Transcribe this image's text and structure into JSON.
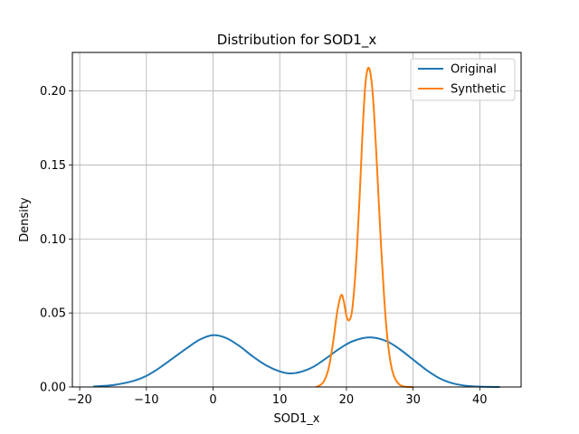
{
  "chart_data": {
    "type": "line",
    "title": "Distribution for SOD1_x",
    "xlabel": "SOD1_x",
    "ylabel": "Density",
    "xlim": [
      -21.1,
      46.2
    ],
    "ylim": [
      0,
      0.226
    ],
    "xticks": [
      -20,
      -10,
      0,
      10,
      20,
      30,
      40
    ],
    "yticks": [
      0.0,
      0.05,
      0.1,
      0.15,
      0.2
    ],
    "xtick_labels": [
      "−20",
      "−10",
      "0",
      "10",
      "20",
      "30",
      "40"
    ],
    "ytick_labels": [
      "0.00",
      "0.05",
      "0.10",
      "0.15",
      "0.20"
    ],
    "grid": true,
    "legend_position": "top-right",
    "series": [
      {
        "name": "Original",
        "color": "#1f77b4",
        "x": [
          -18,
          -15,
          -12,
          -10,
          -8,
          -6,
          -4,
          -2,
          0,
          2,
          4,
          6,
          8,
          10,
          11.5,
          13,
          15,
          17,
          19,
          21,
          23.5,
          26,
          28,
          30,
          32,
          34,
          36,
          38,
          40,
          43
        ],
        "y": [
          0.0003,
          0.0013,
          0.004,
          0.0075,
          0.013,
          0.0195,
          0.026,
          0.032,
          0.035,
          0.033,
          0.0275,
          0.0205,
          0.0145,
          0.0105,
          0.0092,
          0.01,
          0.0135,
          0.0195,
          0.026,
          0.031,
          0.0335,
          0.031,
          0.0255,
          0.0185,
          0.0115,
          0.0058,
          0.0024,
          0.0008,
          0.0002,
          0.0
        ]
      },
      {
        "name": "Synthetic",
        "color": "#ff7f0e",
        "x": [
          15.5,
          16.5,
          17.3,
          18.0,
          18.6,
          19.2,
          19.6,
          20.0,
          20.4,
          20.8,
          21.2,
          21.6,
          22.0,
          22.4,
          22.8,
          23.2,
          23.6,
          24.0,
          24.4,
          24.8,
          25.2,
          25.6,
          26.0,
          26.5,
          27.0,
          27.5,
          28.0,
          28.5,
          29.0,
          30.0
        ],
        "y": [
          0.0,
          0.003,
          0.012,
          0.03,
          0.05,
          0.062,
          0.058,
          0.048,
          0.045,
          0.05,
          0.068,
          0.095,
          0.13,
          0.17,
          0.202,
          0.215,
          0.212,
          0.195,
          0.165,
          0.13,
          0.095,
          0.065,
          0.04,
          0.02,
          0.009,
          0.004,
          0.0015,
          0.0005,
          0.0001,
          0.0
        ]
      }
    ]
  }
}
